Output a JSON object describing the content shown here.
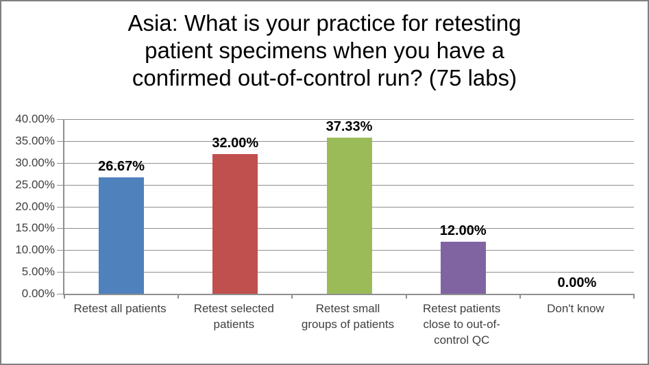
{
  "title": {
    "lines": [
      "Asia: What is your practice for retesting",
      "patient specimens when you have a",
      "confirmed out-of-control run? (75 labs)"
    ]
  },
  "chart_data": {
    "type": "bar",
    "title": "Asia: What is your practice for retesting patient specimens when you have a confirmed out-of-control run? (75 labs)",
    "categories": [
      "Retest all patients",
      "Retest selected patients",
      "Retest small groups of patients",
      "Retest patients close to out-of-control QC",
      "Don't know"
    ],
    "values": [
      26.67,
      32.0,
      37.33,
      12.0,
      0.0
    ],
    "value_labels": [
      "26.67%",
      "32.00%",
      "37.33%",
      "12.00%",
      "0.00%"
    ],
    "bar_colors": [
      "#4f81bd",
      "#c0504d",
      "#9bbb59",
      "#8064a2",
      null
    ],
    "xlabel": "",
    "ylabel": "",
    "ylim": [
      0,
      40
    ],
    "ytick_step": 5,
    "yticks": [
      "0.00%",
      "5.00%",
      "10.00%",
      "15.00%",
      "20.00%",
      "25.00%",
      "30.00%",
      "35.00%",
      "40.00%"
    ],
    "grid": "horizontal",
    "legend": "none",
    "gridline_color": "#8e8e8e",
    "axis_color": "#8e8e8e",
    "tick_label_color": "#404040",
    "data_label_color": "#000000",
    "frame_border_color": "#7f7f7f"
  },
  "xaxis": {
    "labels": [
      {
        "lines": [
          "Retest all patients"
        ]
      },
      {
        "lines": [
          "Retest selected",
          "patients"
        ]
      },
      {
        "lines": [
          "Retest small",
          "groups of patients"
        ]
      },
      {
        "lines": [
          "Retest patients",
          "close to out-of-",
          "control QC"
        ]
      },
      {
        "lines": [
          "Don't know"
        ]
      }
    ]
  }
}
